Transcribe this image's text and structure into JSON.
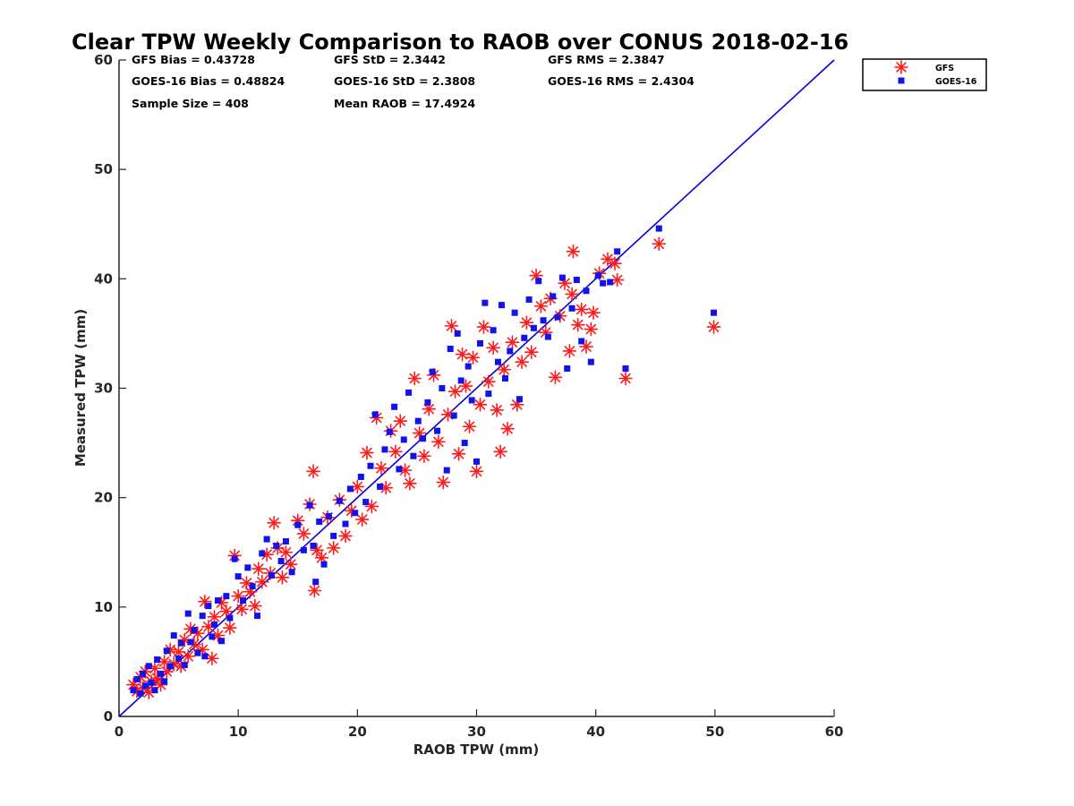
{
  "chart_data": {
    "type": "scatter",
    "title": "Clear TPW Weekly Comparison to RAOB over CONUS 2018-02-16",
    "xlabel": "RAOB TPW (mm)",
    "ylabel": "Measured TPW (mm)",
    "xlim": [
      0,
      60
    ],
    "ylim": [
      0,
      60
    ],
    "xticks": [
      0,
      10,
      20,
      30,
      40,
      50,
      60
    ],
    "yticks": [
      0,
      10,
      20,
      30,
      40,
      50,
      60
    ],
    "grid": false,
    "legend_position": "top-right, outside plot area",
    "reference_line": {
      "type": "one-to-one",
      "from": [
        0,
        0
      ],
      "to": [
        60,
        60
      ],
      "color": "#0000dd"
    },
    "stats": {
      "gfs_bias": "GFS Bias = 0.43728",
      "goes_bias": "GOES-16 Bias = 0.48824",
      "sample_size": "Sample Size = 408",
      "gfs_std": "GFS StD = 2.3442",
      "goes_std": "GOES-16 StD = 2.3808",
      "mean_raob": "Mean RAOB = 17.4924",
      "gfs_rms": "GFS RMS = 2.3847",
      "goes_rms": "GOES-16 RMS = 2.4304"
    },
    "series": [
      {
        "name": "GFS",
        "marker": "asterisk",
        "color": "#ff1a1a",
        "points": [
          [
            1.2,
            2.9
          ],
          [
            1.5,
            2.3
          ],
          [
            1.8,
            3.6
          ],
          [
            2.0,
            2.6
          ],
          [
            2.2,
            4.1
          ],
          [
            2.5,
            2.2
          ],
          [
            2.7,
            3.2
          ],
          [
            3.0,
            4.4
          ],
          [
            3.2,
            3.5
          ],
          [
            3.5,
            2.9
          ],
          [
            3.8,
            5.0
          ],
          [
            4.0,
            4.1
          ],
          [
            4.3,
            6.1
          ],
          [
            4.6,
            4.8
          ],
          [
            5.0,
            5.9
          ],
          [
            5.2,
            4.6
          ],
          [
            5.5,
            7.0
          ],
          [
            5.8,
            5.5
          ],
          [
            6.0,
            8.0
          ],
          [
            6.3,
            6.6
          ],
          [
            6.6,
            7.6
          ],
          [
            7.0,
            6.1
          ],
          [
            7.2,
            10.5
          ],
          [
            7.5,
            8.2
          ],
          [
            7.8,
            5.3
          ],
          [
            8.0,
            9.1
          ],
          [
            8.3,
            7.4
          ],
          [
            8.6,
            10.4
          ],
          [
            9.0,
            9.6
          ],
          [
            9.3,
            8.1
          ],
          [
            9.7,
            14.7
          ],
          [
            10.0,
            11.0
          ],
          [
            10.3,
            9.8
          ],
          [
            10.7,
            12.2
          ],
          [
            11.0,
            11.4
          ],
          [
            11.4,
            10.1
          ],
          [
            11.7,
            13.5
          ],
          [
            12.0,
            12.3
          ],
          [
            12.4,
            14.8
          ],
          [
            12.7,
            13.1
          ],
          [
            13.0,
            17.7
          ],
          [
            13.3,
            15.4
          ],
          [
            13.7,
            12.7
          ],
          [
            14.0,
            15.0
          ],
          [
            14.4,
            13.9
          ],
          [
            15.0,
            17.9
          ],
          [
            15.5,
            16.7
          ],
          [
            16.0,
            19.4
          ],
          [
            16.3,
            22.4
          ],
          [
            16.4,
            11.5
          ],
          [
            16.6,
            15.2
          ],
          [
            17.0,
            14.5
          ],
          [
            17.5,
            18.2
          ],
          [
            18.0,
            15.4
          ],
          [
            18.5,
            19.8
          ],
          [
            19.0,
            16.5
          ],
          [
            19.5,
            18.8
          ],
          [
            20.0,
            21.0
          ],
          [
            20.4,
            18.0
          ],
          [
            20.8,
            24.1
          ],
          [
            21.2,
            19.2
          ],
          [
            21.6,
            27.3
          ],
          [
            22.0,
            22.7
          ],
          [
            22.4,
            20.9
          ],
          [
            22.8,
            26.1
          ],
          [
            23.2,
            24.2
          ],
          [
            23.6,
            27.0
          ],
          [
            24.0,
            22.5
          ],
          [
            24.4,
            21.3
          ],
          [
            24.8,
            30.9
          ],
          [
            25.2,
            25.9
          ],
          [
            25.6,
            23.8
          ],
          [
            26.0,
            28.1
          ],
          [
            26.4,
            31.2
          ],
          [
            26.8,
            25.1
          ],
          [
            27.2,
            21.4
          ],
          [
            27.6,
            27.6
          ],
          [
            27.9,
            35.7
          ],
          [
            28.2,
            29.7
          ],
          [
            28.5,
            24.0
          ],
          [
            28.8,
            33.1
          ],
          [
            29.1,
            30.2
          ],
          [
            29.4,
            26.5
          ],
          [
            29.7,
            32.8
          ],
          [
            30.0,
            22.4
          ],
          [
            30.3,
            28.5
          ],
          [
            30.6,
            35.6
          ],
          [
            31.0,
            30.6
          ],
          [
            31.4,
            33.7
          ],
          [
            31.7,
            28.0
          ],
          [
            32.0,
            24.2
          ],
          [
            32.3,
            31.7
          ],
          [
            32.6,
            26.3
          ],
          [
            33.0,
            34.2
          ],
          [
            33.4,
            28.5
          ],
          [
            33.8,
            32.4
          ],
          [
            34.2,
            36.0
          ],
          [
            34.6,
            33.3
          ],
          [
            35.0,
            40.3
          ],
          [
            35.4,
            37.5
          ],
          [
            35.8,
            35.1
          ],
          [
            36.2,
            38.2
          ],
          [
            36.6,
            31.0
          ],
          [
            37.0,
            36.6
          ],
          [
            37.4,
            39.6
          ],
          [
            37.8,
            33.4
          ],
          [
            38.0,
            38.6
          ],
          [
            38.1,
            42.5
          ],
          [
            38.5,
            35.8
          ],
          [
            38.8,
            37.2
          ],
          [
            39.2,
            33.8
          ],
          [
            39.6,
            35.4
          ],
          [
            39.8,
            36.9
          ],
          [
            40.3,
            40.5
          ],
          [
            41.0,
            41.8
          ],
          [
            41.6,
            41.4
          ],
          [
            41.8,
            39.9
          ],
          [
            42.5,
            30.9
          ],
          [
            45.3,
            43.2
          ],
          [
            49.9,
            35.6
          ]
        ]
      },
      {
        "name": "GOES-16",
        "marker": "square",
        "color": "#1212ee",
        "points": [
          [
            1.2,
            2.4
          ],
          [
            1.5,
            3.4
          ],
          [
            1.8,
            2.1
          ],
          [
            2.0,
            3.9
          ],
          [
            2.2,
            2.8
          ],
          [
            2.5,
            4.6
          ],
          [
            2.7,
            3.1
          ],
          [
            3.0,
            2.4
          ],
          [
            3.2,
            5.2
          ],
          [
            3.5,
            3.9
          ],
          [
            3.8,
            3.2
          ],
          [
            4.0,
            6.0
          ],
          [
            4.3,
            4.6
          ],
          [
            4.6,
            7.4
          ],
          [
            5.0,
            5.3
          ],
          [
            5.2,
            6.7
          ],
          [
            5.5,
            4.7
          ],
          [
            5.8,
            9.4
          ],
          [
            6.0,
            6.8
          ],
          [
            6.3,
            7.9
          ],
          [
            6.6,
            5.8
          ],
          [
            7.0,
            9.2
          ],
          [
            7.2,
            5.5
          ],
          [
            7.5,
            10.1
          ],
          [
            7.8,
            7.3
          ],
          [
            8.0,
            8.4
          ],
          [
            8.3,
            10.6
          ],
          [
            8.6,
            6.9
          ],
          [
            9.0,
            11.0
          ],
          [
            9.3,
            9.0
          ],
          [
            9.7,
            14.4
          ],
          [
            10.0,
            12.8
          ],
          [
            10.4,
            10.6
          ],
          [
            10.8,
            13.6
          ],
          [
            11.2,
            11.9
          ],
          [
            11.6,
            9.2
          ],
          [
            12.0,
            14.9
          ],
          [
            12.4,
            16.2
          ],
          [
            12.8,
            12.9
          ],
          [
            13.2,
            15.6
          ],
          [
            13.6,
            14.2
          ],
          [
            14.0,
            16.0
          ],
          [
            14.5,
            13.2
          ],
          [
            15.0,
            17.5
          ],
          [
            15.5,
            15.2
          ],
          [
            16.0,
            19.3
          ],
          [
            16.3,
            15.6
          ],
          [
            16.5,
            12.3
          ],
          [
            16.8,
            17.8
          ],
          [
            17.2,
            13.9
          ],
          [
            17.6,
            18.3
          ],
          [
            18.0,
            16.5
          ],
          [
            18.5,
            19.7
          ],
          [
            19.0,
            17.6
          ],
          [
            19.4,
            20.8
          ],
          [
            19.8,
            18.6
          ],
          [
            20.3,
            21.9
          ],
          [
            20.7,
            19.6
          ],
          [
            21.1,
            22.9
          ],
          [
            21.5,
            27.6
          ],
          [
            21.9,
            21.0
          ],
          [
            22.3,
            24.4
          ],
          [
            22.7,
            26.0
          ],
          [
            23.1,
            28.3
          ],
          [
            23.5,
            22.6
          ],
          [
            23.9,
            25.3
          ],
          [
            24.3,
            29.6
          ],
          [
            24.7,
            23.8
          ],
          [
            25.1,
            27.0
          ],
          [
            25.5,
            25.4
          ],
          [
            25.9,
            28.7
          ],
          [
            26.3,
            31.5
          ],
          [
            26.7,
            26.1
          ],
          [
            27.1,
            30.0
          ],
          [
            27.5,
            22.5
          ],
          [
            27.8,
            33.6
          ],
          [
            28.1,
            27.5
          ],
          [
            28.4,
            35.0
          ],
          [
            28.7,
            30.7
          ],
          [
            29.0,
            25.0
          ],
          [
            29.3,
            32.0
          ],
          [
            29.6,
            28.9
          ],
          [
            30.0,
            23.3
          ],
          [
            30.3,
            34.1
          ],
          [
            30.7,
            37.8
          ],
          [
            31.0,
            29.5
          ],
          [
            31.4,
            35.3
          ],
          [
            31.8,
            32.4
          ],
          [
            32.1,
            37.6
          ],
          [
            32.4,
            30.9
          ],
          [
            32.8,
            33.4
          ],
          [
            33.2,
            36.9
          ],
          [
            33.6,
            29.0
          ],
          [
            34.0,
            34.6
          ],
          [
            34.4,
            38.1
          ],
          [
            34.8,
            35.5
          ],
          [
            35.2,
            39.8
          ],
          [
            35.6,
            36.2
          ],
          [
            36.0,
            34.7
          ],
          [
            36.4,
            38.4
          ],
          [
            36.8,
            36.5
          ],
          [
            37.2,
            40.1
          ],
          [
            37.6,
            31.8
          ],
          [
            38.0,
            37.3
          ],
          [
            38.4,
            39.9
          ],
          [
            38.8,
            34.3
          ],
          [
            39.2,
            38.9
          ],
          [
            39.6,
            32.4
          ],
          [
            40.2,
            40.3
          ],
          [
            40.6,
            39.6
          ],
          [
            41.2,
            39.7
          ],
          [
            41.8,
            42.5
          ],
          [
            42.5,
            31.8
          ],
          [
            45.3,
            44.6
          ],
          [
            49.9,
            36.9
          ]
        ]
      }
    ]
  }
}
